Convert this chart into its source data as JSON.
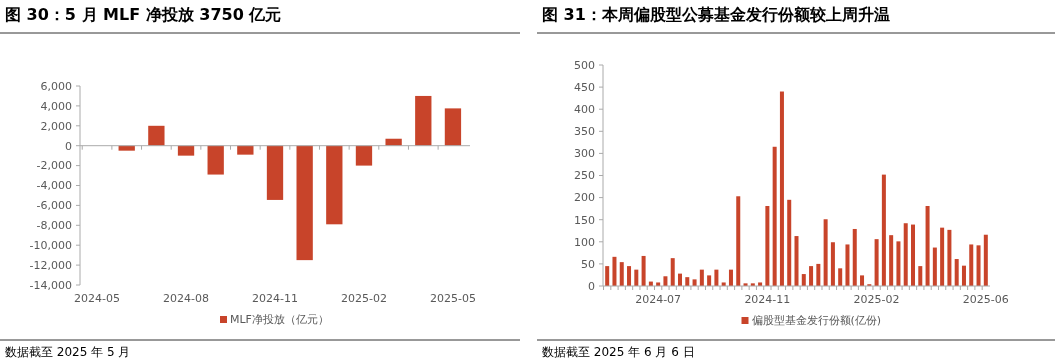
{
  "chart_data": [
    {
      "type": "bar",
      "title": "图 30：5 月 MLF 净投放 3750 亿元",
      "categories": [
        "2024-05",
        null,
        null,
        "2024-08",
        null,
        null,
        "2024-11",
        null,
        null,
        "2025-02",
        null,
        null,
        "2025-05"
      ],
      "series": [
        {
          "name": "MLF净投放（亿元）",
          "color": "#c8442a",
          "values": [
            0,
            -500,
            2000,
            -1000,
            -2900,
            -900,
            -5450,
            -11500,
            -7900,
            -2000,
            700,
            5000,
            3750
          ]
        }
      ],
      "ylim": [
        -14000,
        6000
      ],
      "yticks": [
        {
          "value": -14000,
          "label": "-14,000"
        },
        {
          "value": -12000,
          "label": "-12,000"
        },
        {
          "value": -10000,
          "label": "-10,000"
        },
        {
          "value": -8000,
          "label": "-8,000"
        },
        {
          "value": -6000,
          "label": "-6,000"
        },
        {
          "value": -4000,
          "label": "-4,000"
        },
        {
          "value": -2000,
          "label": "-2,000"
        },
        0,
        {
          "value": 2000,
          "label": "2,000"
        },
        {
          "value": 4000,
          "label": "4,000"
        },
        {
          "value": 6000,
          "label": "6,000"
        }
      ],
      "legend": "bottom",
      "annotations": [
        "数据截至 2025 年 5 月"
      ]
    },
    {
      "type": "bar",
      "title": "图 31：本周偏股型公募基金发行份额较上周升温",
      "categories": [
        null,
        null,
        null,
        null,
        null,
        null,
        null,
        "2024-07",
        null,
        null,
        null,
        null,
        null,
        null,
        null,
        null,
        null,
        null,
        null,
        null,
        null,
        null,
        "2024-11",
        null,
        null,
        null,
        null,
        null,
        null,
        null,
        null,
        null,
        null,
        null,
        null,
        null,
        null,
        "2025-02",
        null,
        null,
        null,
        null,
        null,
        null,
        null,
        null,
        null,
        null,
        null,
        null,
        null,
        null,
        "2025-06"
      ],
      "series": [
        {
          "name": "偏股型基金发行份额(亿份)",
          "color": "#c8442a",
          "values": [
            45,
            66,
            54,
            45,
            37,
            68,
            10,
            8,
            22,
            63,
            28,
            20,
            15,
            37,
            24,
            37,
            8,
            37,
            203,
            6,
            6,
            8,
            181,
            315,
            440,
            195,
            113,
            27,
            45,
            50,
            151,
            99,
            40,
            94,
            129,
            24,
            4,
            106,
            252,
            115,
            101,
            142,
            139,
            45,
            181,
            87,
            132,
            127,
            61,
            46,
            94,
            92,
            116
          ]
        }
      ],
      "ylim": [
        0,
        500
      ],
      "yticks": [
        0,
        50,
        100,
        150,
        200,
        250,
        300,
        350,
        400,
        450,
        500
      ],
      "legend": "bottom",
      "annotations": [
        "数据截至 2025 年 6 月 6 日"
      ]
    }
  ]
}
